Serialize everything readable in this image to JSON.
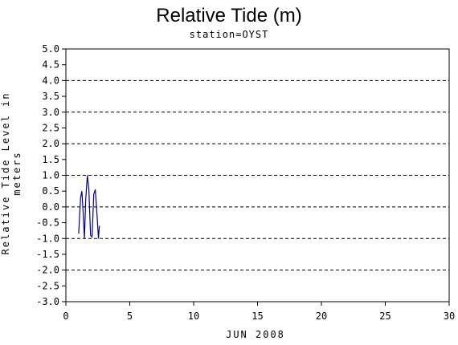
{
  "chart_data": {
    "type": "line",
    "title": "Relative Tide (m)",
    "subtitle": "station=OYST",
    "xlabel": "JUN 2008",
    "ylabel": "Relative Tide Level in meters",
    "xlim": [
      0,
      30
    ],
    "ylim": [
      -3.0,
      5.0
    ],
    "xticks": [
      "0",
      "5",
      "10",
      "15",
      "20",
      "25",
      "30"
    ],
    "yticks": [
      "5.0",
      "4.5",
      "4.0",
      "3.5",
      "3.0",
      "2.5",
      "2.0",
      "1.5",
      "1.0",
      "0.5",
      "0.0",
      "-0.5",
      "-1.0",
      "-1.5",
      "-2.0",
      "-2.5",
      "-3.0"
    ],
    "grid": {
      "y_dashed_at": [
        5.0,
        4.0,
        3.0,
        2.0,
        1.0,
        0.0,
        -1.0,
        -2.0,
        -3.0
      ]
    },
    "series": [
      {
        "color": "#00008b",
        "x": [
          1.0,
          1.15,
          1.25,
          1.35,
          1.45,
          1.55,
          1.68,
          1.8,
          1.93,
          2.05,
          2.18,
          2.3,
          2.45,
          2.55,
          2.62
        ],
        "y": [
          -0.85,
          0.3,
          0.5,
          -0.2,
          -1.0,
          0.2,
          1.0,
          0.55,
          -0.9,
          -0.95,
          0.4,
          0.55,
          -0.35,
          -1.0,
          -0.6
        ]
      }
    ]
  }
}
